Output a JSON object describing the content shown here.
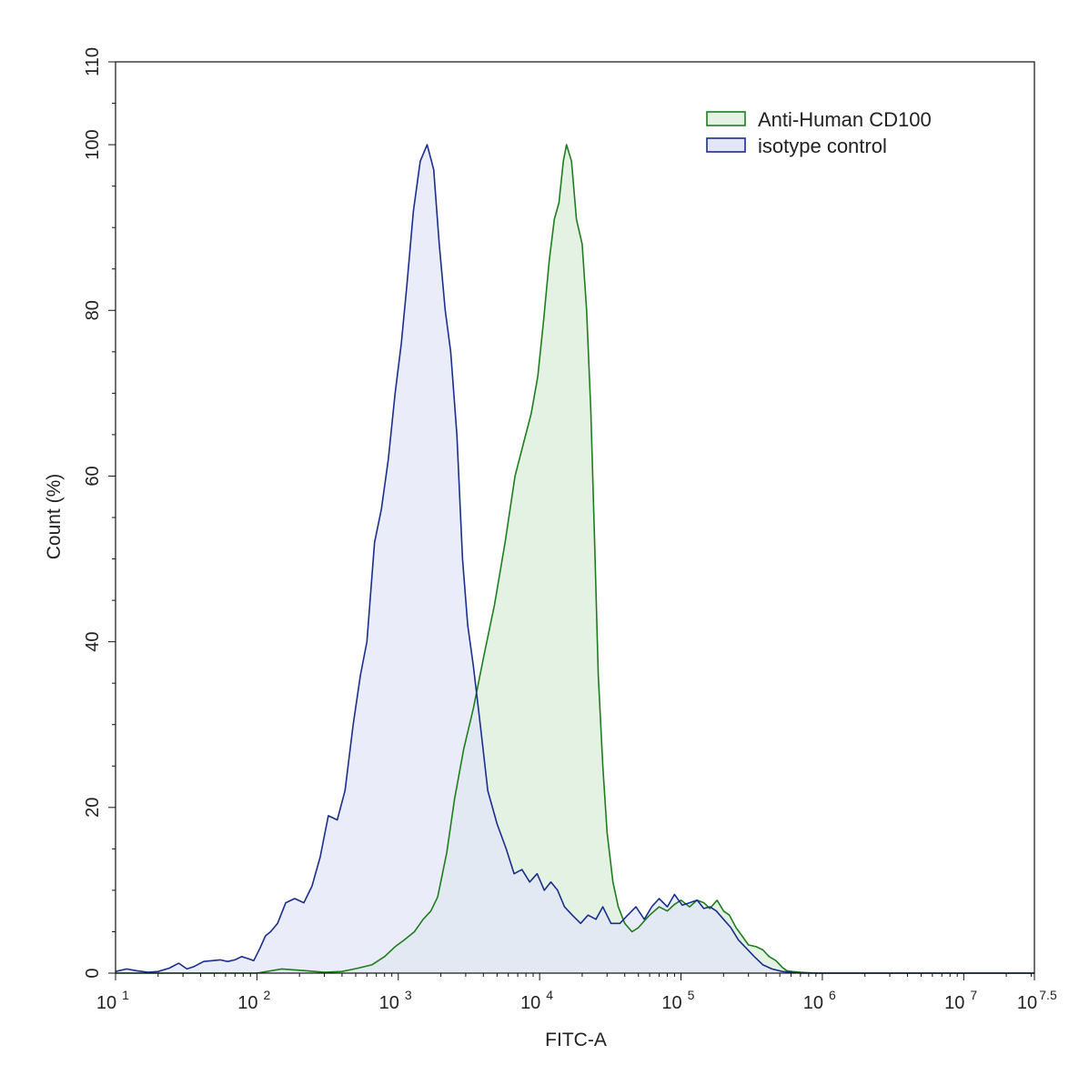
{
  "chart_data": {
    "type": "area",
    "xlabel": "FITC-A",
    "ylabel": "Count  (%)",
    "x_scale": "log10",
    "xlim": [
      10,
      31622776.6
    ],
    "ylim": [
      0,
      110
    ],
    "grid": false,
    "legend_position": "top-right",
    "x_ticks": [
      {
        "base": "10",
        "exp": "1",
        "value": 10
      },
      {
        "base": "10",
        "exp": "2",
        "value": 100
      },
      {
        "base": "10",
        "exp": "3",
        "value": 1000
      },
      {
        "base": "10",
        "exp": "4",
        "value": 10000
      },
      {
        "base": "10",
        "exp": "5",
        "value": 100000
      },
      {
        "base": "10",
        "exp": "6",
        "value": 1000000
      },
      {
        "base": "10",
        "exp": "7",
        "value": 10000000
      },
      {
        "base": "10",
        "exp": "7.5",
        "value": 31622776.6
      }
    ],
    "y_ticks": [
      0,
      20,
      40,
      60,
      80,
      100,
      110
    ],
    "series": [
      {
        "name": "Anti-Human CD100",
        "stroke": "#1e7d1e",
        "fill": "#e3f2e3",
        "x": [
          10,
          100,
          150,
          220,
          300,
          400,
          520,
          650,
          800,
          950,
          1100,
          1300,
          1500,
          1700,
          1900,
          2200,
          2500,
          2900,
          3400,
          4000,
          4800,
          5700,
          6700,
          7700,
          8700,
          9700,
          10700,
          11700,
          12700,
          13700,
          14700,
          15500,
          16800,
          18200,
          20000,
          21500,
          23000,
          24500,
          26000,
          28000,
          30000,
          33000,
          36000,
          40000,
          45000,
          50000,
          55000,
          60000,
          70000,
          80000,
          90000,
          100000,
          115000,
          130000,
          145000,
          160000,
          180000,
          200000,
          220000,
          245000,
          270000,
          300000,
          340000,
          380000,
          420000,
          470000,
          520000,
          560000,
          610000,
          700000,
          900000,
          31622776.6
        ],
        "values": [
          0,
          0,
          0.5,
          0.3,
          0.1,
          0.2,
          0.6,
          1.0,
          2.0,
          3.2,
          4.0,
          5.0,
          6.5,
          7.5,
          9.2,
          14.5,
          21.0,
          27.0,
          32.0,
          38.0,
          44.5,
          52.0,
          60.0,
          64.0,
          67.5,
          72.0,
          79.0,
          86.0,
          91.0,
          93.0,
          98.0,
          100.0,
          98.0,
          91.0,
          88.0,
          80.0,
          68.0,
          52.0,
          36.0,
          25.0,
          17.0,
          11.0,
          8.0,
          6.0,
          5.0,
          5.5,
          6.3,
          7.0,
          8.0,
          7.5,
          8.3,
          8.8,
          8.0,
          8.8,
          8.5,
          7.8,
          8.8,
          7.5,
          7.0,
          5.5,
          4.5,
          3.4,
          3.2,
          2.8,
          2.0,
          1.5,
          0.7,
          0.3,
          0.2,
          0.1,
          0,
          0
        ]
      },
      {
        "name": "isotype control",
        "stroke": "#1a2e8c",
        "fill": "#e3e6f7",
        "x": [
          10,
          12,
          14,
          17,
          20,
          24,
          28,
          32,
          36,
          42,
          48,
          55,
          62,
          70,
          78,
          85,
          95,
          105,
          115,
          125,
          140,
          160,
          185,
          215,
          245,
          280,
          320,
          370,
          420,
          480,
          540,
          600,
          680,
          760,
          850,
          950,
          1050,
          1150,
          1280,
          1430,
          1600,
          1780,
          1950,
          2150,
          2350,
          2600,
          2850,
          3100,
          3400,
          3800,
          4300,
          5000,
          5800,
          6600,
          7500,
          8500,
          9600,
          10800,
          12000,
          13400,
          15000,
          17000,
          19500,
          22000,
          25000,
          28000,
          32000,
          37000,
          42000,
          48000,
          55000,
          62000,
          70000,
          80000,
          90000,
          102000,
          115000,
          130000,
          145000,
          160000,
          178000,
          200000,
          225000,
          255000,
          290000,
          330000,
          380000,
          440000,
          520000,
          600000,
          700000,
          31622776.6
        ],
        "values": [
          0.2,
          0.5,
          0.3,
          0.1,
          0.2,
          0.6,
          1.2,
          0.5,
          0.8,
          1.4,
          1.5,
          1.6,
          1.4,
          1.6,
          2.0,
          1.8,
          1.5,
          3.0,
          4.5,
          5.0,
          6.0,
          8.5,
          9.0,
          8.5,
          10.5,
          14.0,
          19.0,
          18.5,
          22.0,
          30.0,
          36.0,
          40.0,
          52.0,
          56.0,
          62.0,
          70.0,
          76.0,
          83.0,
          92.0,
          98.0,
          100.0,
          97.0,
          88.0,
          80.0,
          75.0,
          65.0,
          50.0,
          42.0,
          37.0,
          30.0,
          22.0,
          18.0,
          15.0,
          12.0,
          12.5,
          11.0,
          12.0,
          10.0,
          11.0,
          10.0,
          8.0,
          7.0,
          6.0,
          7.0,
          6.5,
          8.0,
          6.0,
          6.0,
          7.0,
          8.0,
          6.5,
          8.0,
          9.0,
          8.0,
          9.5,
          8.2,
          8.5,
          8.8,
          7.8,
          8.0,
          7.5,
          6.5,
          5.5,
          4.0,
          3.0,
          2.0,
          1.0,
          0.5,
          0.2,
          0.1,
          0,
          0
        ]
      }
    ]
  }
}
